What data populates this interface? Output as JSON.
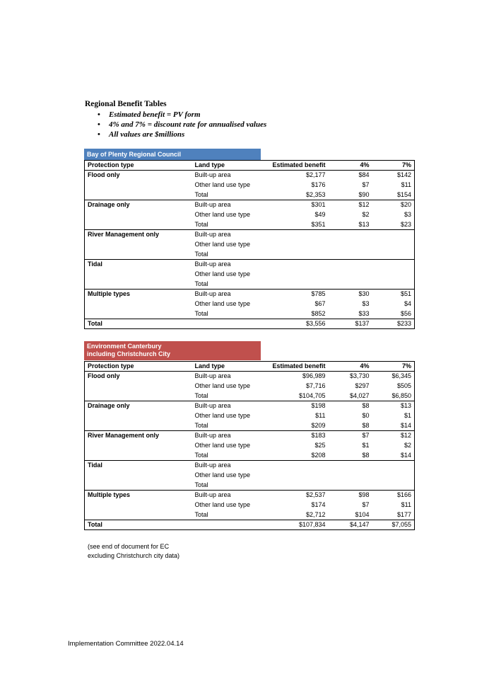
{
  "heading": "Regional Benefit Tables",
  "bullets": [
    "Estimated benefit = PV form",
    "4% and 7% = discount rate for annualised values",
    "All values are $millions"
  ],
  "columns": [
    "Protection type",
    "Land type",
    "Estimated benefit",
    "4%",
    "7%"
  ],
  "tables": [
    {
      "caption_lines": [
        "Bay of Plenty Regional Council"
      ],
      "groups": [
        {
          "type": "Flood only",
          "rows": [
            {
              "land": "Built-up area",
              "est": "$2,177",
              "p4": "$84",
              "p7": "$142"
            },
            {
              "land": "Other land use type",
              "est": "$176",
              "p4": "$7",
              "p7": "$11"
            },
            {
              "land": "Total",
              "est": "$2,353",
              "p4": "$90",
              "p7": "$154"
            }
          ]
        },
        {
          "type": "Drainage only",
          "rows": [
            {
              "land": "Built-up area",
              "est": "$301",
              "p4": "$12",
              "p7": "$20"
            },
            {
              "land": "Other land use type",
              "est": "$49",
              "p4": "$2",
              "p7": "$3"
            },
            {
              "land": "Total",
              "est": "$351",
              "p4": "$13",
              "p7": "$23"
            }
          ]
        },
        {
          "type": "River Management only",
          "rows": [
            {
              "land": "Built-up area",
              "est": "",
              "p4": "",
              "p7": ""
            },
            {
              "land": "Other land use type",
              "est": "",
              "p4": "",
              "p7": ""
            },
            {
              "land": "Total",
              "est": "",
              "p4": "",
              "p7": ""
            }
          ]
        },
        {
          "type": "Tidal",
          "rows": [
            {
              "land": "Built-up area",
              "est": "",
              "p4": "",
              "p7": ""
            },
            {
              "land": "Other land use type",
              "est": "",
              "p4": "",
              "p7": ""
            },
            {
              "land": "Total",
              "est": "",
              "p4": "",
              "p7": ""
            }
          ]
        },
        {
          "type": "Multiple types",
          "rows": [
            {
              "land": "Built-up area",
              "est": "$785",
              "p4": "$30",
              "p7": "$51"
            },
            {
              "land": "Other land use type",
              "est": "$67",
              "p4": "$3",
              "p7": "$4"
            },
            {
              "land": "Total",
              "est": "$852",
              "p4": "$33",
              "p7": "$56"
            }
          ]
        }
      ],
      "total": {
        "label": "Total",
        "est": "$3,556",
        "p4": "$137",
        "p7": "$233"
      }
    },
    {
      "caption_lines": [
        "Environment Canterbury",
        "including Christchurch City"
      ],
      "groups": [
        {
          "type": "Flood only",
          "rows": [
            {
              "land": "Built-up area",
              "est": "$96,989",
              "p4": "$3,730",
              "p7": "$6,345"
            },
            {
              "land": "Other land use type",
              "est": "$7,716",
              "p4": "$297",
              "p7": "$505"
            },
            {
              "land": "Total",
              "est": "$104,705",
              "p4": "$4,027",
              "p7": "$6,850"
            }
          ]
        },
        {
          "type": "Drainage only",
          "rows": [
            {
              "land": "Built-up area",
              "est": "$198",
              "p4": "$8",
              "p7": "$13"
            },
            {
              "land": "Other land use type",
              "est": "$11",
              "p4": "$0",
              "p7": "$1"
            },
            {
              "land": "Total",
              "est": "$209",
              "p4": "$8",
              "p7": "$14"
            }
          ]
        },
        {
          "type": "River Management only",
          "rows": [
            {
              "land": "Built-up area",
              "est": "$183",
              "p4": "$7",
              "p7": "$12"
            },
            {
              "land": "Other land use type",
              "est": "$25",
              "p4": "$1",
              "p7": "$2"
            },
            {
              "land": "Total",
              "est": "$208",
              "p4": "$8",
              "p7": "$14"
            }
          ]
        },
        {
          "type": "Tidal",
          "rows": [
            {
              "land": "Built-up area",
              "est": "",
              "p4": "",
              "p7": ""
            },
            {
              "land": "Other land use type",
              "est": "",
              "p4": "",
              "p7": ""
            },
            {
              "land": "Total",
              "est": "",
              "p4": "",
              "p7": ""
            }
          ]
        },
        {
          "type": "Multiple types",
          "rows": [
            {
              "land": "Built-up area",
              "est": "$2,537",
              "p4": "$98",
              "p7": "$166"
            },
            {
              "land": "Other land use type",
              "est": "$174",
              "p4": "$7",
              "p7": "$11"
            },
            {
              "land": "Total",
              "est": "$2,712",
              "p4": "$104",
              "p7": "$177"
            }
          ]
        }
      ],
      "total": {
        "label": "Total",
        "est": "$107,834",
        "p4": "$4,147",
        "p7": "$7,055"
      }
    }
  ],
  "note_lines": [
    "(see end of document for EC",
    "excluding Christchurch city data)"
  ],
  "footer": "Implementation Committee 2022.04.14",
  "colors": {
    "bop_caption": "#4f81bd",
    "ec_caption": "#c0504d"
  }
}
